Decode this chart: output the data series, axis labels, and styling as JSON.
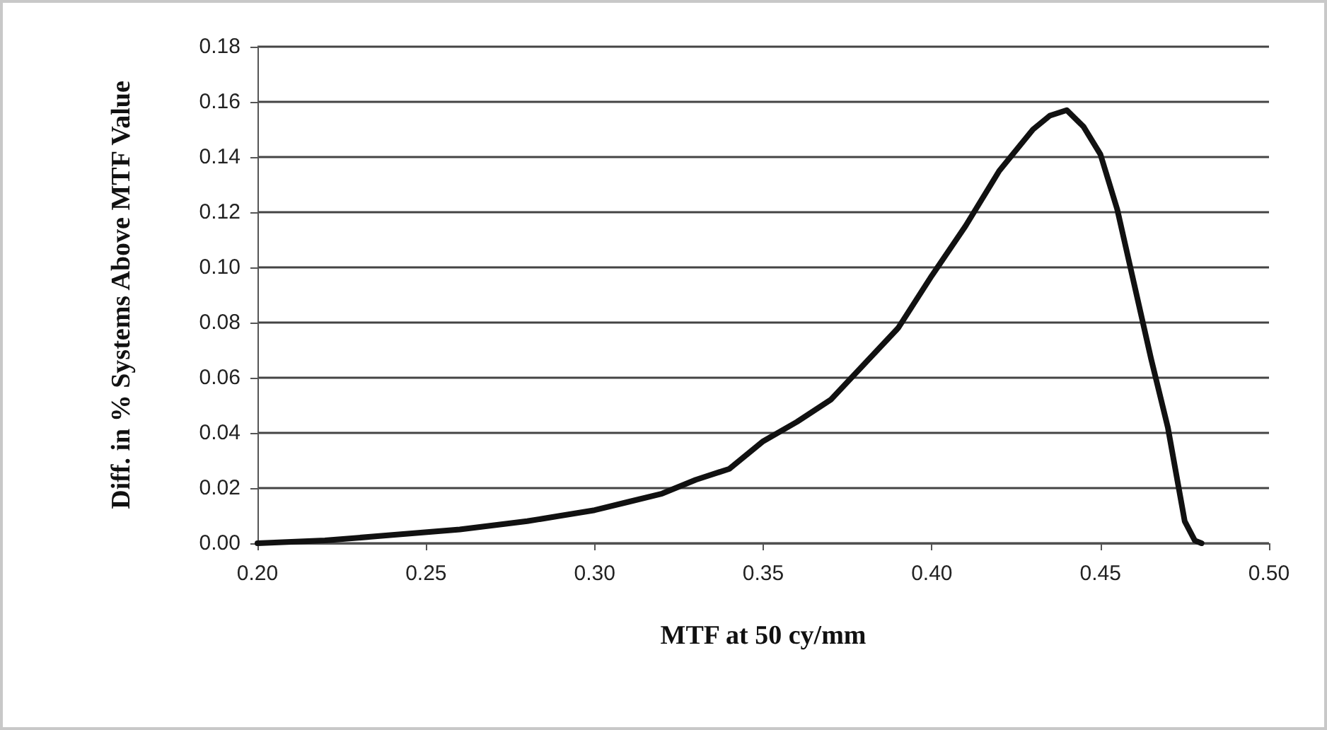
{
  "chart_data": {
    "type": "line",
    "xlabel": "MTF at 50 cy/mm",
    "ylabel": "Diff. in % Systems Above MTF Value",
    "x": [
      0.2,
      0.22,
      0.24,
      0.26,
      0.28,
      0.29,
      0.3,
      0.31,
      0.32,
      0.33,
      0.34,
      0.35,
      0.36,
      0.37,
      0.38,
      0.39,
      0.4,
      0.41,
      0.42,
      0.43,
      0.435,
      0.44,
      0.445,
      0.45,
      0.455,
      0.46,
      0.465,
      0.47,
      0.475,
      0.478,
      0.48
    ],
    "series": [
      {
        "color": "#111111",
        "values": [
          0.0,
          0.001,
          0.003,
          0.005,
          0.008,
          0.01,
          0.012,
          0.015,
          0.018,
          0.023,
          0.027,
          0.037,
          0.044,
          0.052,
          0.065,
          0.078,
          0.097,
          0.115,
          0.135,
          0.15,
          0.155,
          0.157,
          0.151,
          0.141,
          0.121,
          0.094,
          0.067,
          0.042,
          0.008,
          0.001,
          0.0
        ]
      }
    ],
    "xlim": [
      0.2,
      0.5
    ],
    "xticks": [
      {
        "value": 0.2,
        "label": "0.20"
      },
      0.25,
      {
        "value": 0.3,
        "label": "0.30"
      },
      0.35,
      {
        "value": 0.4,
        "label": "0.40"
      },
      0.45,
      {
        "value": 0.5,
        "label": "0.50"
      }
    ],
    "ylim": [
      0,
      0.18
    ],
    "yticks": [
      {
        "value": 0,
        "label": "0.00"
      },
      0.02,
      0.04,
      0.06,
      0.08,
      {
        "value": 0.1,
        "label": "0.10"
      },
      0.12,
      0.14,
      0.16,
      0.18
    ],
    "grid": "y",
    "marker": "none",
    "line_style": "solid"
  }
}
